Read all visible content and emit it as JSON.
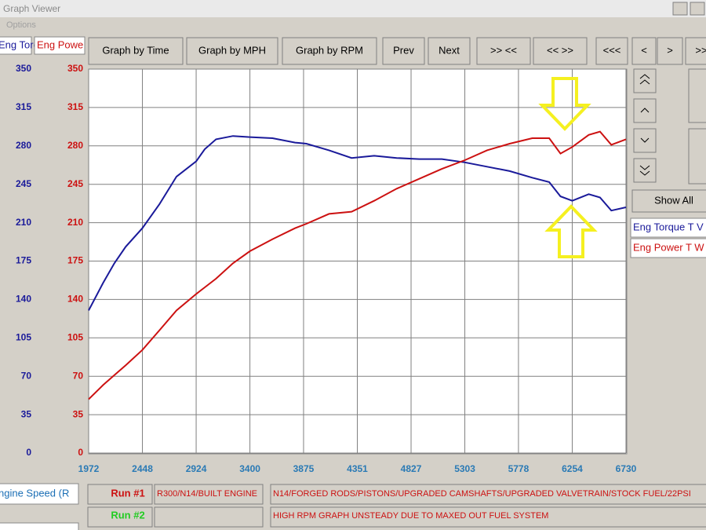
{
  "window": {
    "title": "Graph Viewer",
    "menu": "Options"
  },
  "toolbar": {
    "buttons": [
      "Graph by Time",
      "Graph by MPH",
      "Graph by RPM",
      "Prev",
      "Next",
      ">> <<",
      "<< >>",
      "<<<",
      "<",
      ">",
      ">>"
    ]
  },
  "side_panel": {
    "show_all": "Show All"
  },
  "runs": [
    {
      "label": "Run #1",
      "name": "R300/N14/BUILT ENGINE",
      "notes": "N14/FORGED RODS/PISTONS/UPGRADED CAMSHAFTS/UPGRADED VALVETRAIN/STOCK FUEL/22PSI"
    },
    {
      "label": "Run #2",
      "notes": "HIGH RPM GRAPH UNSTEADY DUE TO MAXED OUT FUEL SYSTEM"
    }
  ],
  "chart_data": {
    "type": "line",
    "y_label": "Eng Torq",
    "y2_label": "Eng Powe",
    "x_label": "ngine Speed (R",
    "x": [
      1972,
      2100,
      2200,
      2300,
      2448,
      2600,
      2750,
      2924,
      3000,
      3100,
      3250,
      3400,
      3600,
      3800,
      3900,
      4100,
      4300,
      4500,
      4700,
      4900,
      5100,
      5303,
      5500,
      5700,
      5900,
      6050,
      6150,
      6254,
      6400,
      6500,
      6600,
      6730
    ],
    "xlim": [
      1972,
      6730
    ],
    "xticks": [
      1972,
      2448,
      2924,
      3400,
      3875,
      4351,
      4827,
      5303,
      5778,
      6254,
      6730
    ],
    "ylim": [
      0,
      350
    ],
    "yticks": [
      0,
      35,
      70,
      105,
      140,
      175,
      210,
      245,
      280,
      315,
      350
    ],
    "y2lim": [
      0,
      350
    ],
    "y2ticks": [
      0,
      35,
      70,
      105,
      140,
      175,
      210,
      245,
      280,
      315,
      350
    ],
    "grid": true,
    "series": [
      {
        "name": "Eng Torque T V",
        "color": "#1a1a9a",
        "values": [
          130,
          155,
          173,
          188,
          205,
          227,
          252,
          266,
          277,
          286,
          289,
          288,
          287,
          283,
          282,
          276,
          269,
          271,
          269,
          268,
          268,
          265,
          261,
          257,
          251,
          247,
          234,
          230,
          236,
          233,
          221,
          224
        ]
      },
      {
        "name": "Eng Power T W",
        "color": "#cc1111",
        "axis": "y2",
        "values": [
          49,
          62,
          71,
          80,
          94,
          112,
          130,
          145,
          151,
          159,
          173,
          184,
          195,
          205,
          209,
          218,
          220,
          230,
          241,
          250,
          259,
          267,
          276,
          282,
          287,
          287,
          273,
          279,
          290,
          293,
          281,
          286
        ]
      }
    ]
  }
}
